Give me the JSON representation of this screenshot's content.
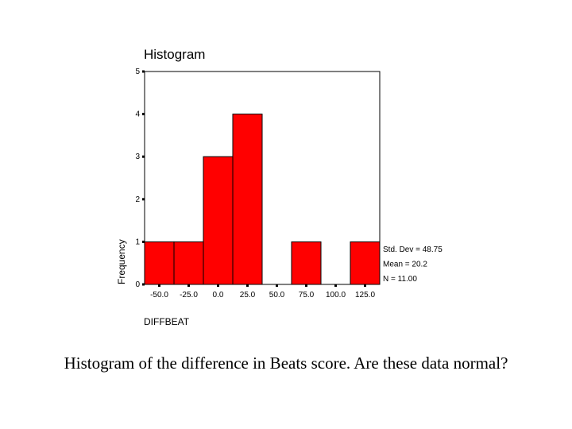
{
  "chart_data": {
    "type": "bar",
    "title": "Histogram",
    "xlabel": "DIFFBEAT",
    "ylabel": "Frequency",
    "categories": [
      "-50.0",
      "-25.0",
      "0.0",
      "25.0",
      "50.0",
      "75.0",
      "100.0",
      "125.0"
    ],
    "values": [
      1,
      1,
      3,
      4,
      0,
      1,
      0,
      1
    ],
    "ylim": [
      0,
      5
    ],
    "yticks": [
      "0",
      "1",
      "2",
      "3",
      "4",
      "5"
    ],
    "bar_color": "#ff0000",
    "stats": [
      "Std. Dev = 48.75",
      "Mean = 20.2",
      "N = 11.00"
    ],
    "grid": false
  },
  "caption": "Histogram of the difference in Beats score.  Are these data normal?"
}
